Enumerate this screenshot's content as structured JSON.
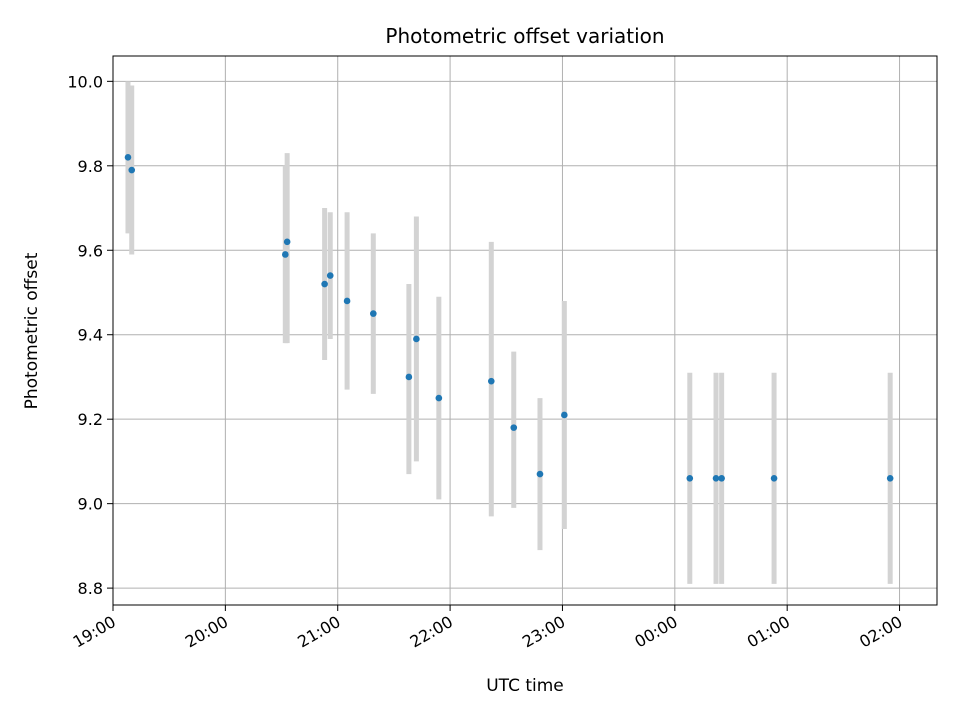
{
  "chart_data": {
    "type": "scatter",
    "title": "Photometric offset variation",
    "xlabel": "UTC time",
    "ylabel": "Photometric offset",
    "x_unit": "UTC",
    "xlim": [
      "19:00",
      "02:20"
    ],
    "ylim": [
      8.76,
      10.06
    ],
    "grid": true,
    "yticks": [
      "8.8",
      "9.0",
      "9.2",
      "9.4",
      "9.6",
      "9.8",
      "10.0"
    ],
    "xticks": [
      "19:00",
      "20:00",
      "21:00",
      "22:00",
      "23:00",
      "00:00",
      "01:00",
      "02:00"
    ],
    "colors": {
      "point": "#1f77b4",
      "errorbar": "#d3d3d3",
      "grid": "#b0b0b0"
    },
    "points": [
      {
        "x": "19:08",
        "y": 9.82,
        "ylow": 9.64,
        "yhigh": 10.0
      },
      {
        "x": "19:10",
        "y": 9.79,
        "ylow": 9.59,
        "yhigh": 9.99
      },
      {
        "x": "20:32",
        "y": 9.59,
        "ylow": 9.38,
        "yhigh": 9.8
      },
      {
        "x": "20:33",
        "y": 9.62,
        "ylow": 9.38,
        "yhigh": 9.83
      },
      {
        "x": "20:53",
        "y": 9.52,
        "ylow": 9.34,
        "yhigh": 9.7
      },
      {
        "x": "20:56",
        "y": 9.54,
        "ylow": 9.39,
        "yhigh": 9.69
      },
      {
        "x": "21:05",
        "y": 9.48,
        "ylow": 9.27,
        "yhigh": 9.69
      },
      {
        "x": "21:19",
        "y": 9.45,
        "ylow": 9.26,
        "yhigh": 9.64
      },
      {
        "x": "21:38",
        "y": 9.3,
        "ylow": 9.07,
        "yhigh": 9.52
      },
      {
        "x": "21:42",
        "y": 9.39,
        "ylow": 9.1,
        "yhigh": 9.68
      },
      {
        "x": "21:54",
        "y": 9.25,
        "ylow": 9.01,
        "yhigh": 9.49
      },
      {
        "x": "22:22",
        "y": 9.29,
        "ylow": 8.97,
        "yhigh": 9.62
      },
      {
        "x": "22:34",
        "y": 9.18,
        "ylow": 8.99,
        "yhigh": 9.36
      },
      {
        "x": "22:48",
        "y": 9.07,
        "ylow": 8.89,
        "yhigh": 9.25
      },
      {
        "x": "23:01",
        "y": 9.21,
        "ylow": 8.94,
        "yhigh": 9.48
      },
      {
        "x": "00:08",
        "y": 9.06,
        "ylow": 8.81,
        "yhigh": 9.31
      },
      {
        "x": "00:22",
        "y": 9.06,
        "ylow": 8.81,
        "yhigh": 9.31
      },
      {
        "x": "00:25",
        "y": 9.06,
        "ylow": 8.81,
        "yhigh": 9.31
      },
      {
        "x": "00:53",
        "y": 9.06,
        "ylow": 8.81,
        "yhigh": 9.31
      },
      {
        "x": "01:55",
        "y": 9.06,
        "ylow": 8.81,
        "yhigh": 9.31
      }
    ]
  }
}
